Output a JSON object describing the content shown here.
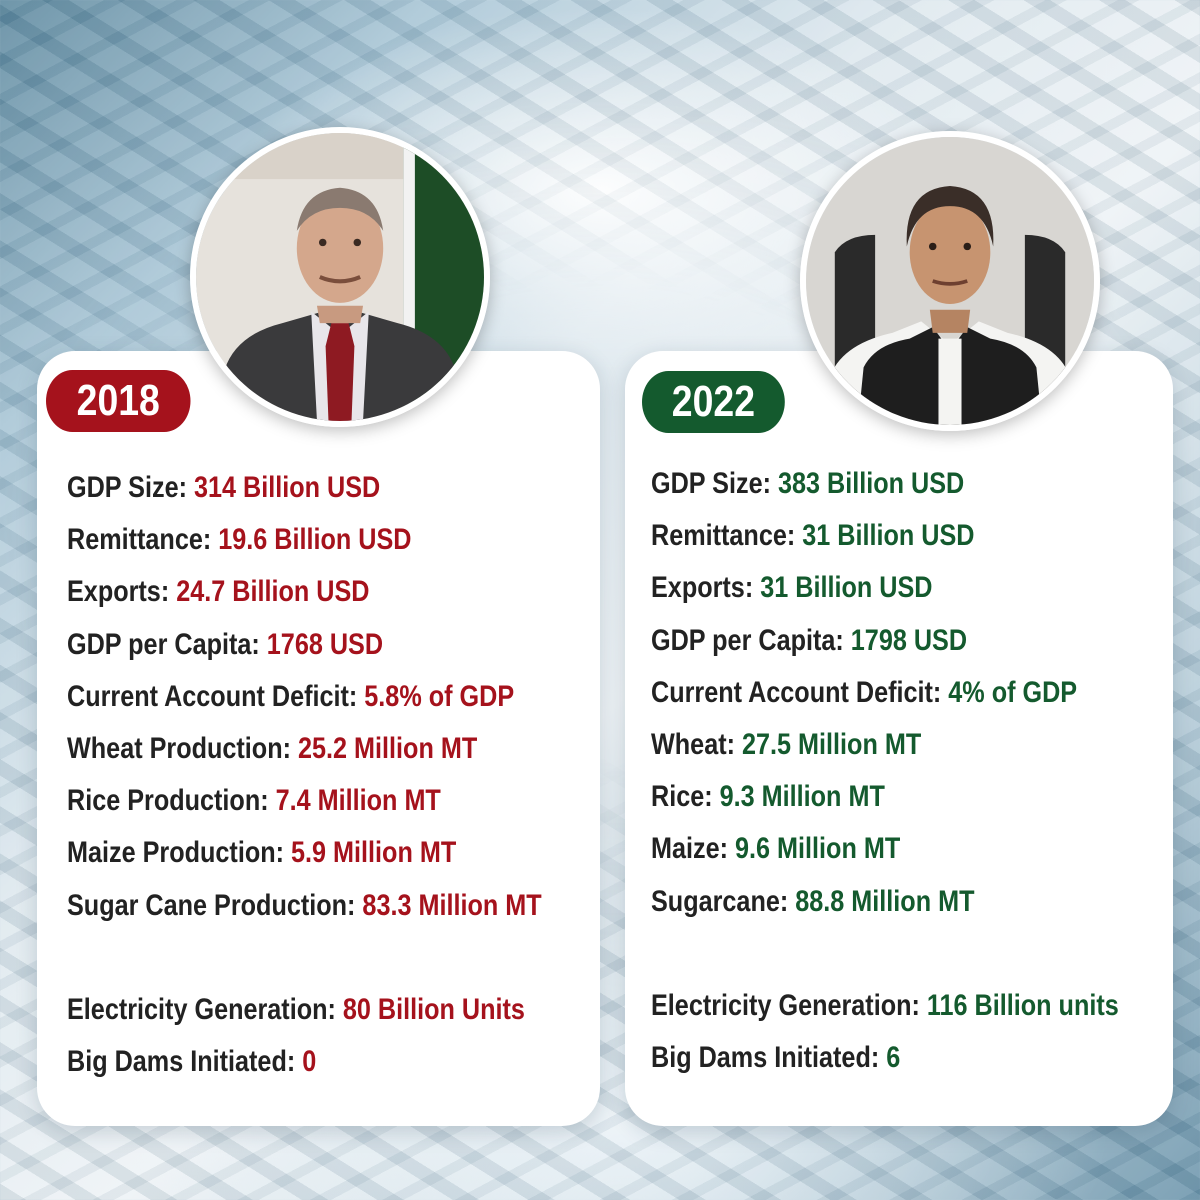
{
  "left": {
    "year": "2018",
    "accent": "#a5121c",
    "stats": [
      {
        "label": "GDP Size:",
        "value": "314 Billion USD"
      },
      {
        "label": "Remittance:",
        "value": "19.6 Billion USD"
      },
      {
        "label": "Exports:",
        "value": "24.7 Billion USD"
      },
      {
        "label": "GDP per Capita:",
        "value": "1768 USD"
      },
      {
        "label": "Current Account Deficit:",
        "value": "5.8% of GDP"
      },
      {
        "label": "Wheat Production:",
        "value": "25.2 Million MT"
      },
      {
        "label": "Rice Production:",
        "value": "7.4 Million MT"
      },
      {
        "label": "Maize Production:",
        "value": "5.9 Million MT"
      },
      {
        "label": "Sugar Cane Production:",
        "value": "83.3 Million MT"
      },
      {
        "label": "Electricity Generation:",
        "value": "80 Billion Units"
      },
      {
        "label": "Big Dams Initiated:",
        "value": "0"
      }
    ]
  },
  "right": {
    "year": "2022",
    "accent": "#145a2e",
    "stats": [
      {
        "label": "GDP Size:",
        "value": "383 Billion USD"
      },
      {
        "label": "Remittance:",
        "value": "31 Billion USD"
      },
      {
        "label": "Exports:",
        "value": "31 Billion USD"
      },
      {
        "label": "GDP per Capita:",
        "value": "1798 USD"
      },
      {
        "label": "Current Account Deficit:",
        "value": "4% of GDP"
      },
      {
        "label": "Wheat:",
        "value": "27.5 Million MT"
      },
      {
        "label": "Rice:",
        "value": "9.3 Million MT"
      },
      {
        "label": "Maize:",
        "value": "9.6 Million MT"
      },
      {
        "label": "Sugarcane:",
        "value": "88.8 Million MT"
      },
      {
        "label": "Electricity Generation:",
        "value": "116 Billion units"
      },
      {
        "label": "Big Dams Initiated:",
        "value": "6"
      }
    ]
  }
}
